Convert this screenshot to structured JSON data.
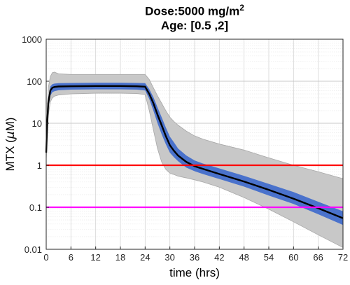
{
  "chart_data": {
    "type": "line",
    "title_line1_prefix": "Dose:5000 mg/m",
    "title_line1_sup": "2",
    "title_line2": "Age: [0.5 ,2]",
    "xlabel": "time (hrs)",
    "ylabel_prefix": "MTX (",
    "ylabel_mu": "μ",
    "ylabel_suffix": "M)",
    "xlim": [
      0,
      72
    ],
    "ylim": [
      0.01,
      1000
    ],
    "yscale": "log",
    "grid": "major and minor",
    "xticks": [
      0,
      6,
      12,
      18,
      24,
      30,
      36,
      42,
      48,
      54,
      60,
      66,
      72
    ],
    "yticks": [
      0.01,
      0.1,
      1,
      10,
      100,
      1000
    ],
    "ytick_labels": [
      "0.01",
      "0.1",
      "1",
      "10",
      "100",
      "1000"
    ],
    "median": {
      "x": [
        0,
        0.25,
        0.5,
        1,
        1.5,
        2,
        3,
        6,
        12,
        18,
        22,
        24,
        25,
        26,
        27,
        28,
        29,
        30,
        31,
        32,
        34,
        36,
        38,
        42,
        48,
        54,
        60,
        66,
        72
      ],
      "y": [
        2.0,
        10,
        30,
        60,
        70,
        73,
        75,
        76,
        77,
        77,
        76,
        74,
        50,
        30,
        16,
        9.0,
        5.0,
        3.0,
        2.2,
        1.7,
        1.2,
        0.95,
        0.82,
        0.62,
        0.41,
        0.26,
        0.16,
        0.095,
        0.055
      ]
    },
    "inner_band": {
      "x": [
        0,
        0.25,
        0.5,
        1,
        1.5,
        2,
        3,
        6,
        12,
        18,
        22,
        24,
        25,
        26,
        27,
        28,
        29,
        30,
        31,
        32,
        34,
        36,
        38,
        42,
        48,
        54,
        60,
        66,
        72
      ],
      "lower": [
        1.6,
        7,
        22,
        45,
        55,
        58,
        61,
        63,
        64,
        64,
        63,
        60,
        38,
        20,
        10,
        5.5,
        3.2,
        2.0,
        1.55,
        1.25,
        0.88,
        0.72,
        0.62,
        0.47,
        0.31,
        0.19,
        0.12,
        0.068,
        0.038
      ],
      "upper": [
        2.5,
        13,
        40,
        75,
        85,
        88,
        90,
        91,
        92,
        92,
        91,
        90,
        65,
        42,
        24,
        14,
        8.0,
        4.8,
        3.5,
        2.5,
        1.7,
        1.3,
        1.1,
        0.84,
        0.56,
        0.36,
        0.23,
        0.135,
        0.08
      ]
    },
    "outer_band": {
      "x": [
        0,
        0.25,
        0.5,
        1,
        1.5,
        2,
        3,
        6,
        12,
        18,
        22,
        24,
        25,
        26,
        27,
        28,
        29,
        30,
        31,
        32,
        34,
        36,
        38,
        42,
        48,
        54,
        60,
        66,
        72
      ],
      "lower": [
        1.3,
        5,
        15,
        32,
        40,
        44,
        47,
        50,
        52,
        52,
        51,
        48,
        20,
        7,
        2.5,
        1.2,
        0.8,
        0.65,
        0.6,
        0.55,
        0.5,
        0.45,
        0.4,
        0.3,
        0.17,
        0.09,
        0.045,
        0.022,
        0.011
      ],
      "upper": [
        3.0,
        20,
        70,
        130,
        160,
        165,
        150,
        145,
        145,
        145,
        145,
        145,
        110,
        70,
        45,
        30,
        20,
        14,
        11,
        9,
        6.5,
        5.0,
        4.2,
        3.2,
        2.3,
        1.5,
        1.0,
        0.7,
        0.48
      ]
    },
    "hlines": [
      {
        "y": 1,
        "color": "#ff0000"
      },
      {
        "y": 0.1,
        "color": "#ff00ff"
      }
    ],
    "colors": {
      "median": "#000000",
      "inner_band": "#4a72cc",
      "outer_band": "#c8c8c8",
      "outer_band_edge": "#a8a8a8",
      "axes": "#262626",
      "grid": "#d4d4d4"
    }
  }
}
